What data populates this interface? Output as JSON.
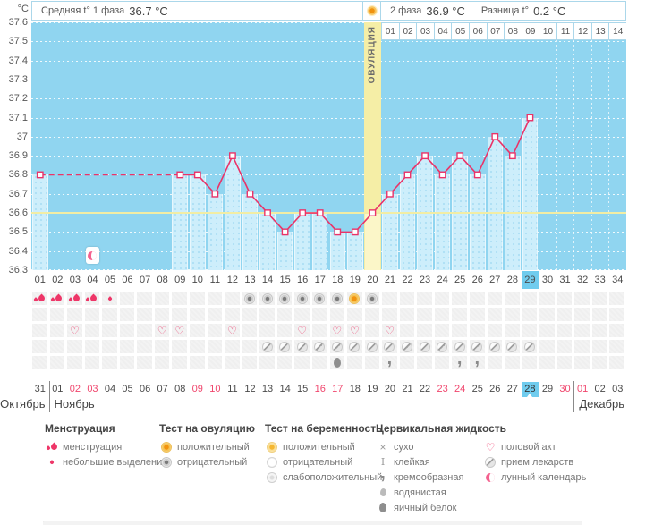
{
  "header": {
    "unit": "°C",
    "avg_phase1_label": "Средняя t° 1 фаза",
    "avg_phase1_value": "36.7 °C",
    "phase2_label": "2 фаза",
    "phase2_value": "36.9 °C",
    "diff_label": "Разница t°",
    "diff_value": "0.2 °C",
    "ovulation_label": "ОВУЛЯЦИЯ"
  },
  "chart_data": {
    "type": "line",
    "ylabel": "°C",
    "ylim": [
      36.3,
      37.6
    ],
    "ytick_labels": [
      "37.6",
      "37.5",
      "37.4",
      "37.3",
      "37.2",
      "37.1",
      "37",
      "36.9",
      "36.8",
      "36.7",
      "36.6",
      "36.5",
      "36.4",
      "36.3"
    ],
    "coverline": 36.6,
    "grid": "dotted-white",
    "day_labels": [
      "01",
      "02",
      "03",
      "04",
      "05",
      "06",
      "07",
      "08",
      "09",
      "10",
      "11",
      "12",
      "13",
      "14",
      "15",
      "16",
      "17",
      "18",
      "19",
      "20",
      "21",
      "22",
      "23",
      "24",
      "25",
      "26",
      "27",
      "28",
      "29",
      "30",
      "31",
      "32",
      "33",
      "34"
    ],
    "temps": [
      36.8,
      null,
      null,
      null,
      null,
      null,
      null,
      null,
      36.8,
      36.8,
      36.7,
      36.9,
      36.7,
      36.6,
      36.5,
      36.6,
      36.6,
      36.5,
      36.5,
      36.6,
      36.7,
      36.8,
      36.9,
      36.8,
      36.9,
      36.8,
      37.0,
      36.9,
      37.1,
      null,
      null,
      null,
      null,
      null
    ],
    "ovulation_day": 20,
    "today_day": 29,
    "phase2_labels": [
      "01",
      "02",
      "03",
      "04",
      "05",
      "06",
      "07",
      "08",
      "09",
      "10",
      "11",
      "12",
      "13",
      "14"
    ],
    "phase2_start_day": 21
  },
  "markers": {
    "menstruation_heavy_days": [
      1,
      2,
      3,
      4
    ],
    "menstruation_light_days": [
      5
    ],
    "ovulation_test_negative_days": [
      13,
      14,
      15,
      16,
      17,
      18,
      20
    ],
    "ovulation_test_positive_days": [
      19
    ],
    "intercourse_days": [
      3,
      8,
      9,
      12,
      16,
      18,
      19,
      21
    ],
    "medication_days": [
      14,
      15,
      16,
      17,
      18,
      19,
      20,
      21,
      22,
      23,
      24,
      25,
      26,
      27,
      28,
      29
    ],
    "cervical_eggwhite_days": [
      18
    ],
    "cervical_creamy_days": [
      21,
      25,
      26
    ],
    "lunar_calendar_days": [
      4
    ]
  },
  "calendar": {
    "months": [
      "Октябрь",
      "Ноябрь",
      "Декабрь"
    ],
    "month_divider_after_days": [
      1,
      31
    ],
    "dates": [
      {
        "label": "31",
        "red": false,
        "today": false
      },
      {
        "label": "01",
        "red": false,
        "today": false
      },
      {
        "label": "02",
        "red": true,
        "today": false
      },
      {
        "label": "03",
        "red": true,
        "today": false
      },
      {
        "label": "04",
        "red": false,
        "today": false
      },
      {
        "label": "05",
        "red": false,
        "today": false
      },
      {
        "label": "06",
        "red": false,
        "today": false
      },
      {
        "label": "07",
        "red": false,
        "today": false
      },
      {
        "label": "08",
        "red": false,
        "today": false
      },
      {
        "label": "09",
        "red": true,
        "today": false
      },
      {
        "label": "10",
        "red": true,
        "today": false
      },
      {
        "label": "11",
        "red": false,
        "today": false
      },
      {
        "label": "12",
        "red": false,
        "today": false
      },
      {
        "label": "13",
        "red": false,
        "today": false
      },
      {
        "label": "14",
        "red": false,
        "today": false
      },
      {
        "label": "15",
        "red": false,
        "today": false
      },
      {
        "label": "16",
        "red": true,
        "today": false
      },
      {
        "label": "17",
        "red": true,
        "today": false
      },
      {
        "label": "18",
        "red": false,
        "today": false
      },
      {
        "label": "19",
        "red": false,
        "today": false
      },
      {
        "label": "20",
        "red": false,
        "today": false
      },
      {
        "label": "21",
        "red": false,
        "today": false
      },
      {
        "label": "22",
        "red": false,
        "today": false
      },
      {
        "label": "23",
        "red": true,
        "today": false
      },
      {
        "label": "24",
        "red": true,
        "today": false
      },
      {
        "label": "25",
        "red": false,
        "today": false
      },
      {
        "label": "26",
        "red": false,
        "today": false
      },
      {
        "label": "27",
        "red": false,
        "today": false
      },
      {
        "label": "28",
        "red": false,
        "today": true
      },
      {
        "label": "29",
        "red": false,
        "today": false
      },
      {
        "label": "30",
        "red": true,
        "today": false
      },
      {
        "label": "01",
        "red": true,
        "today": false
      },
      {
        "label": "02",
        "red": false,
        "today": false
      },
      {
        "label": "03",
        "red": false,
        "today": false
      }
    ]
  },
  "legend": {
    "sections": [
      {
        "title": "Менструация",
        "items": [
          {
            "icon": "drop-heavy",
            "label": "менструация"
          },
          {
            "icon": "drop-small",
            "label": "небольшие выделения"
          }
        ]
      },
      {
        "title": "Тест на овуляцию",
        "items": [
          {
            "icon": "ovu-pos",
            "label": "положительный"
          },
          {
            "icon": "ovu-neg",
            "label": "отрицательный"
          }
        ]
      },
      {
        "title": "Тест на беременность",
        "items": [
          {
            "icon": "preg-pos",
            "label": "положительный"
          },
          {
            "icon": "preg-neg",
            "label": "отрицательный"
          },
          {
            "icon": "preg-weak",
            "label": "слабоположительный"
          }
        ]
      },
      {
        "title": "Цервикальная жидкость",
        "items": [
          {
            "icon": "dry",
            "label": "сухо"
          },
          {
            "icon": "sticky",
            "label": "клейкая"
          },
          {
            "icon": "creamy",
            "label": "кремообразная"
          },
          {
            "icon": "watery",
            "label": "водянистая"
          },
          {
            "icon": "eggwhite",
            "label": "яичный белок"
          }
        ]
      },
      {
        "title": "",
        "items": [
          {
            "icon": "heart",
            "label": "половой акт"
          },
          {
            "icon": "pill",
            "label": "прием лекарств"
          },
          {
            "icon": "moon",
            "label": "лунный календарь"
          }
        ]
      }
    ]
  },
  "colors": {
    "accent_pink": "#ee3668",
    "chart_bg": "#90d5f0",
    "bar": "#cdeefb",
    "ovulation_band": "#f5eea6",
    "coverline": "#f2eda4",
    "today_highlight": "#70ccee",
    "weekend_red": "#f0466d",
    "positive_orange": "#f1930f"
  }
}
